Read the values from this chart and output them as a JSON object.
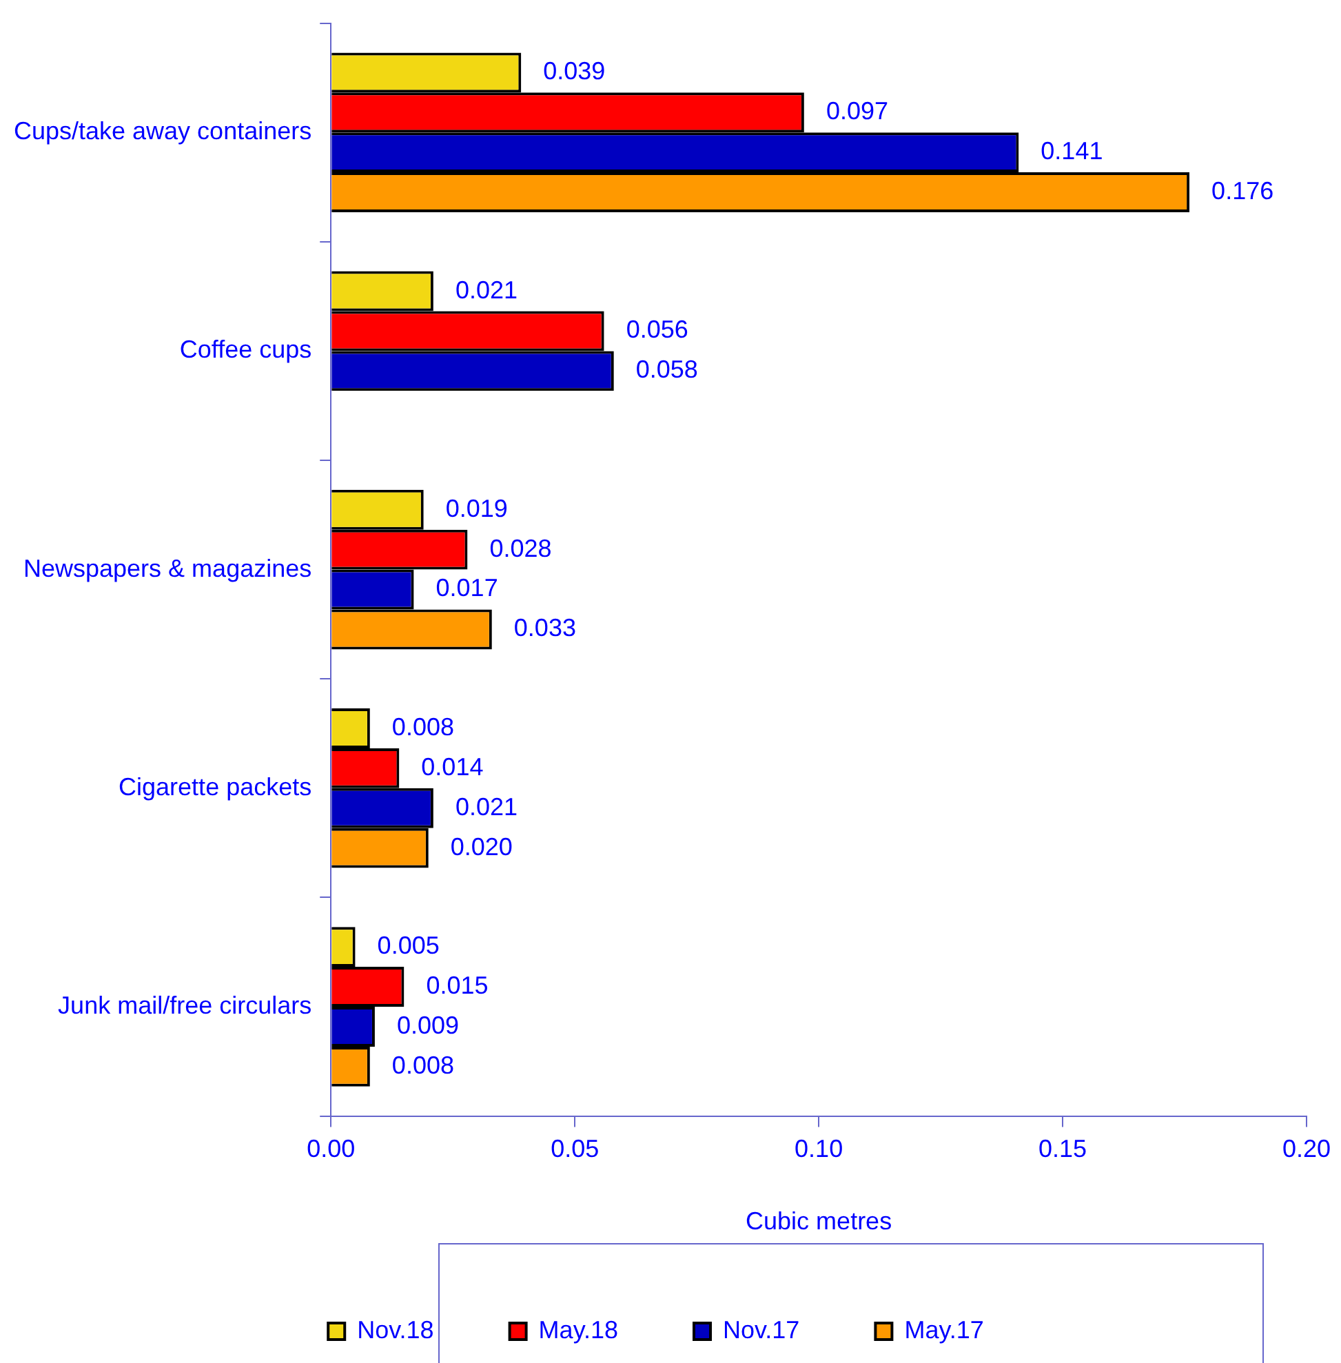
{
  "chart_data": {
    "type": "bar",
    "orientation": "horizontal",
    "xlabel": "Cubic metres",
    "categories": [
      "Cups/take away containers",
      "Coffee cups",
      "Newspapers & magazines",
      "Cigarette packets",
      "Junk mail/free circulars"
    ],
    "series": [
      {
        "name": "Nov.18",
        "color": "#f2d813",
        "values": [
          0.039,
          0.021,
          0.019,
          0.008,
          0.005
        ],
        "value_labels": [
          "0.039",
          "0.021",
          "0.019",
          "0.008",
          "0.005"
        ]
      },
      {
        "name": "May.18",
        "color": "#ff0000",
        "values": [
          0.097,
          0.056,
          0.028,
          0.014,
          0.015
        ],
        "value_labels": [
          "0.097",
          "0.056",
          "0.028",
          "0.014",
          "0.015"
        ]
      },
      {
        "name": "Nov.17",
        "color": "#0000c0",
        "values": [
          0.141,
          0.058,
          0.017,
          0.021,
          0.009
        ],
        "value_labels": [
          "0.141",
          "0.058",
          "0.017",
          "0.021",
          "0.009"
        ]
      },
      {
        "name": "May.17",
        "color": "#ff9900",
        "values": [
          0.176,
          null,
          0.033,
          0.02,
          0.008
        ],
        "value_labels": [
          "0.176",
          null,
          "0.033",
          "0.020",
          "0.008"
        ]
      }
    ],
    "xlim": [
      0,
      0.2
    ],
    "xticks": [
      {
        "value": 0,
        "label": "0.00"
      },
      {
        "value": 0.05,
        "label": "0.05"
      },
      {
        "value": 0.1,
        "label": "0.10"
      },
      {
        "value": 0.15,
        "label": "0.15"
      },
      {
        "value": 0.2,
        "label": "0.20"
      }
    ],
    "grid": false,
    "legend": "bottom"
  }
}
